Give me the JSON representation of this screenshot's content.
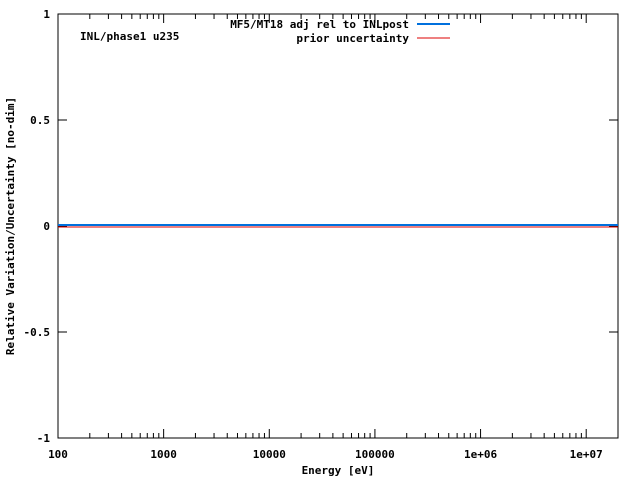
{
  "chart_data": {
    "type": "line",
    "title": "",
    "annotation": "INL/phase1 u235",
    "xlabel": "Energy [eV]",
    "ylabel": "Relative Variation/Uncertainty [no-dim]",
    "xscale": "log",
    "xlim": [
      100,
      20000000
    ],
    "ylim": [
      -1,
      1
    ],
    "x_ticks": [
      "100",
      "1000",
      "10000",
      "100000",
      "1e+06",
      "1e+07"
    ],
    "y_ticks": [
      "-1",
      "-0.5",
      "0",
      "0.5",
      "1"
    ],
    "grid": false,
    "legend_position": "top-center-right",
    "series": [
      {
        "name": "MF5/MT18 adj rel to INLpost",
        "color": "#0070dd",
        "x": [
          100,
          20000000
        ],
        "y": [
          0,
          0
        ]
      },
      {
        "name": "prior uncertainty",
        "color": "#dd0000",
        "x": [
          100,
          20000000
        ],
        "y": [
          0,
          0
        ]
      }
    ]
  }
}
